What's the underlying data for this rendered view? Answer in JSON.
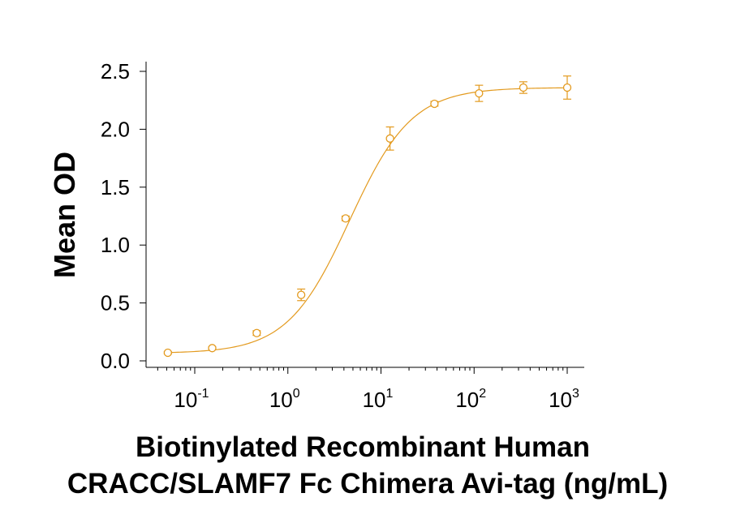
{
  "chart_data": {
    "type": "scatter",
    "title": "",
    "xlabel_lines": [
      "Biotinylated Recombinant Human",
      "CRACC/SLAMF7 Fc Chimera Avi-tag (ng/mL)"
    ],
    "ylabel": "Mean OD",
    "x_scale": "log",
    "xlim": [
      0.04,
      1300
    ],
    "ylim": [
      -0.05,
      2.55
    ],
    "x_ticks": [
      {
        "base": "10",
        "exp": "-1",
        "value": 0.1
      },
      {
        "base": "10",
        "exp": "0",
        "value": 1
      },
      {
        "base": "10",
        "exp": "1",
        "value": 10
      },
      {
        "base": "10",
        "exp": "2",
        "value": 100
      },
      {
        "base": "10",
        "exp": "3",
        "value": 1000
      }
    ],
    "y_ticks": [
      "0.0",
      "0.5",
      "1.0",
      "1.5",
      "2.0",
      "2.5"
    ],
    "grid": false,
    "legend": "none",
    "color": "#E39A1E",
    "series": [
      {
        "x": [
          0.0514,
          0.154,
          0.463,
          1.39,
          4.17,
          12.5,
          37.5,
          113,
          338,
          1000
        ],
        "y": [
          0.07,
          0.11,
          0.24,
          0.57,
          1.23,
          1.92,
          2.22,
          2.31,
          2.36,
          2.36
        ],
        "err": [
          0.01,
          0.01,
          0.02,
          0.05,
          0.02,
          0.1,
          0.02,
          0.07,
          0.05,
          0.1
        ]
      }
    ],
    "fit": {
      "type": "4PL",
      "bottom": 0.065,
      "top": 2.36,
      "ec50": 4.6,
      "hill": 1.3
    }
  }
}
